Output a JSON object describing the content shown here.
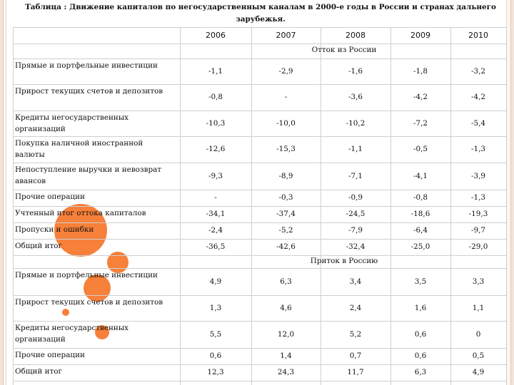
{
  "title": "Таблица : Движение капиталов по негосударственным каналам в 2000-е годы в России и странах дальнего зарубежья.",
  "years": [
    "2006",
    "2007",
    "2008",
    "2009",
    "2010"
  ],
  "sections": [
    {
      "title": "Отток из России",
      "rows": [
        {
          "label": "Прямые и портфельные инвестиции",
          "values": [
            "-1,1",
            "-2,9",
            "-1,6",
            "-1,8",
            "-3,2"
          ]
        },
        {
          "label": "Прирост текущих счетов и депозитов",
          "values": [
            "-0,8",
            "-",
            "-3,6",
            "-4,2",
            "-4,2"
          ]
        },
        {
          "label": "Кредиты негосударственных организаций",
          "values": [
            "-10,3",
            "-10,0",
            "-10,2",
            "-7,2",
            "-5,4"
          ]
        },
        {
          "label": "Покупка наличной иностранной валюты",
          "values": [
            "-12,6",
            "-15,3",
            "-1,1",
            "-0,5",
            "-1,3"
          ]
        },
        {
          "label": "Непоступление выручки и невозврат авансов",
          "values": [
            "-9,3",
            "-8,9",
            "-7,1",
            "-4,1",
            "-3,9"
          ]
        },
        {
          "label": "Прочие операции",
          "values": [
            "-",
            "-0,3",
            "-0,9",
            "-0,8",
            "-1,3"
          ]
        },
        {
          "label": "Учтенный итог оттока капиталов",
          "values": [
            "-34,1",
            "-37,4",
            "-24,5",
            "-18,6",
            "-19,3"
          ]
        },
        {
          "label": "Пропуски и ошибки",
          "values": [
            "-2,4",
            "-5,2",
            "-7,9",
            "-6,4",
            "-9,7"
          ]
        },
        {
          "label": "Общий итог",
          "values": [
            "-36,5",
            "-42,6",
            "-32,4",
            "-25,0",
            "-29,0"
          ]
        }
      ]
    },
    {
      "title": "Приток в Россию",
      "rows": [
        {
          "label": "Прямые и портфельные инвестиции",
          "values": [
            "4,9",
            "6,3",
            "3,4",
            "3,5",
            "3,3"
          ]
        },
        {
          "label": "Прирост текущих счетов и депозитов",
          "values": [
            "1,3",
            "4,6",
            "2,4",
            "1,6",
            "1,1"
          ]
        },
        {
          "label": "Кредиты негосударственных организаций",
          "values": [
            "5,5",
            "12,0",
            "5,2",
            "0,6",
            "0"
          ]
        },
        {
          "label": "Прочие операции",
          "values": [
            "0,6",
            "1,4",
            "0,7",
            "0,6",
            "0,5"
          ]
        },
        {
          "label": "Общий итог",
          "values": [
            "12,3",
            "24,3",
            "11,7",
            "6,3",
            "4,9"
          ]
        }
      ]
    }
  ],
  "colors": {
    "accent": "#f7803a",
    "page_background": "#f3e3d8",
    "grid_line": "#cfcfcf"
  }
}
